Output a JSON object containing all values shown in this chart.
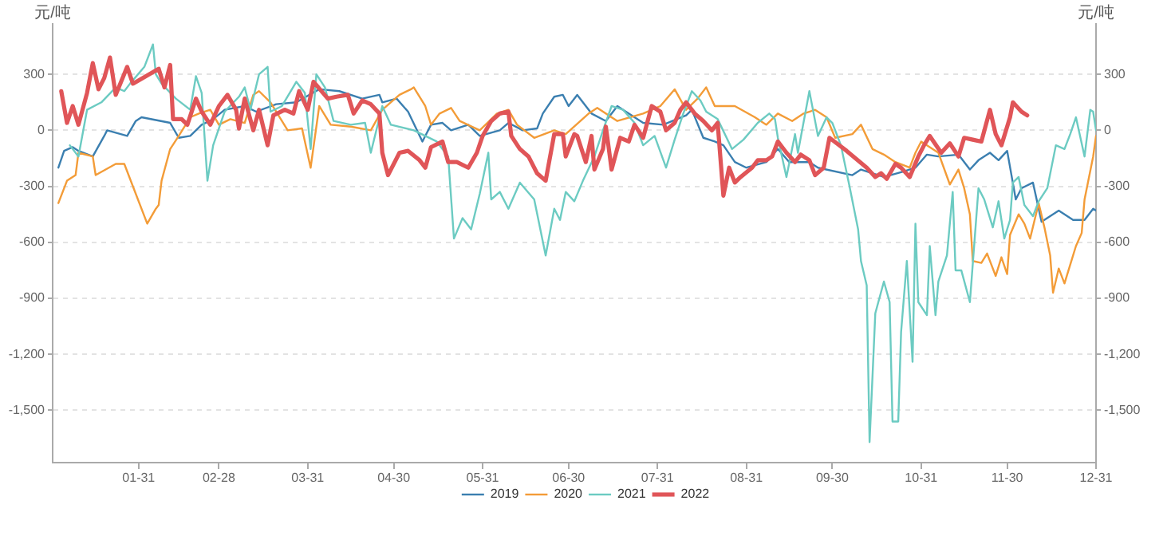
{
  "chart_data": {
    "type": "line",
    "ylabel": "元/吨",
    "y2label": "元/吨",
    "xlim": [
      "--01-01",
      "--12-31"
    ],
    "xticks": [
      {
        "value": "--01-31",
        "label": "01-31"
      },
      {
        "value": "--02-28",
        "label": "02-28"
      },
      {
        "value": "--03-31",
        "label": "03-31"
      },
      {
        "value": "--04-30",
        "label": "04-30"
      },
      {
        "value": "--05-31",
        "label": "05-31"
      },
      {
        "value": "--06-30",
        "label": "06-30"
      },
      {
        "value": "--07-31",
        "label": "07-31"
      },
      {
        "value": "--08-31",
        "label": "08-31"
      },
      {
        "value": "--09-30",
        "label": "09-30"
      },
      {
        "value": "--10-31",
        "label": "10-31"
      },
      {
        "value": "--11-30",
        "label": "11-30"
      },
      {
        "value": "--12-31",
        "label": "12-31"
      }
    ],
    "ylim": [
      -1780,
      570
    ],
    "yticks": [
      300,
      0,
      -300,
      -600,
      -900,
      {
        "value": -1200,
        "label": "-1,200"
      },
      {
        "value": -1500,
        "label": "-1,500"
      }
    ],
    "y2lim": [
      -1780,
      570
    ],
    "y2ticks": [
      300,
      0,
      -300,
      -600,
      -900,
      {
        "value": -1200,
        "label": "-1,200"
      },
      {
        "value": -1500,
        "label": "-1,500"
      }
    ],
    "grid": "y",
    "legend": "bottom",
    "series": [
      {
        "name": "2019",
        "color": "#3b7fb0",
        "x": [
          "--01-03",
          "--01-05",
          "--01-08",
          "--01-10",
          "--01-15",
          "--01-19",
          "--01-20",
          "--01-27",
          "--01-30",
          "--02-01",
          "--02-11",
          "--02-14",
          "--02-18",
          "--02-22",
          "--02-26",
          "--03-02",
          "--03-09",
          "--03-13",
          "--03-20",
          "--03-27",
          "--04-04",
          "--04-11",
          "--04-19",
          "--04-25",
          "--04-26",
          "--05-01",
          "--05-05",
          "--05-10",
          "--05-13",
          "--05-17",
          "--05-20",
          "--05-26",
          "--05-30",
          "--06-06",
          "--06-09",
          "--06-14",
          "--06-19",
          "--06-21",
          "--06-25",
          "--06-28",
          "--06-30",
          "--07-03",
          "--07-08",
          "--07-13",
          "--07-17",
          "--07-23",
          "--07-26",
          "--08-02",
          "--08-10",
          "--08-12",
          "--08-16",
          "--08-20",
          "--08-23",
          "--08-27",
          "--08-31",
          "--09-07",
          "--09-11",
          "--09-15",
          "--09-22",
          "--09-25",
          "--10-07",
          "--10-10",
          "--10-18",
          "--10-25",
          "--10-29",
          "--11-02",
          "--11-06",
          "--11-13",
          "--11-17",
          "--11-20",
          "--11-24",
          "--11-27",
          "--11-30",
          "--12-03",
          "--12-05",
          "--12-09",
          "--12-11",
          "--12-12",
          "--12-18",
          "--12-23",
          "--12-27",
          "--12-30",
          "--12-31"
        ],
        "values": [
          -200,
          -110,
          -90,
          -110,
          -140,
          -30,
          0,
          -30,
          50,
          70,
          40,
          -40,
          -30,
          30,
          60,
          110,
          130,
          100,
          140,
          150,
          220,
          210,
          170,
          190,
          150,
          170,
          100,
          -60,
          30,
          40,
          0,
          30,
          -30,
          0,
          40,
          0,
          10,
          90,
          180,
          190,
          130,
          190,
          90,
          50,
          130,
          70,
          40,
          30,
          80,
          110,
          -40,
          -60,
          -80,
          -170,
          -200,
          -170,
          -100,
          -170,
          -170,
          -200,
          -240,
          -210,
          -250,
          -220,
          -200,
          -130,
          -140,
          -130,
          -210,
          -160,
          -120,
          -160,
          -110,
          -370,
          -310,
          -280,
          -420,
          -490,
          -430,
          -480,
          -480,
          -420,
          -430
        ]
      },
      {
        "name": "2020",
        "color": "#f39c38",
        "x": [
          "--01-03",
          "--01-06",
          "--01-09",
          "--01-10",
          "--01-15",
          "--01-16",
          "--01-23",
          "--01-26",
          "--02-03",
          "--02-06",
          "--02-07",
          "--02-08",
          "--02-11",
          "--02-14",
          "--02-18",
          "--02-21",
          "--02-25",
          "--02-28",
          "--03-04",
          "--03-09",
          "--03-12",
          "--03-14",
          "--03-18",
          "--03-24",
          "--03-29",
          "--04-01",
          "--04-04",
          "--04-08",
          "--04-15",
          "--04-22",
          "--04-26",
          "--05-02",
          "--05-06",
          "--05-07",
          "--05-11",
          "--05-13",
          "--05-16",
          "--05-20",
          "--05-23",
          "--05-30",
          "--06-05",
          "--06-09",
          "--06-12",
          "--06-18",
          "--06-25",
          "--06-29",
          "--07-07",
          "--07-10",
          "--07-17",
          "--07-26",
          "--08-01",
          "--08-06",
          "--08-10",
          "--08-14",
          "--08-17",
          "--08-20",
          "--08-27",
          "--09-03",
          "--09-07",
          "--09-11",
          "--09-16",
          "--09-20",
          "--09-24",
          "--09-28",
          "--10-01",
          "--10-07",
          "--10-10",
          "--10-14",
          "--10-18",
          "--10-22",
          "--10-27",
          "--10-29",
          "--10-31",
          "--11-06",
          "--11-10",
          "--11-13",
          "--11-15",
          "--11-17",
          "--11-18",
          "--11-21",
          "--11-23",
          "--11-26",
          "--11-28",
          "--11-30",
          "--12-01",
          "--12-04",
          "--12-06",
          "--12-08",
          "--12-11",
          "--12-13",
          "--12-15",
          "--12-16",
          "--12-18",
          "--12-20",
          "--12-22",
          "--12-24",
          "--12-26",
          "--12-27",
          "--12-30",
          "--12-31"
        ],
        "values": [
          -390,
          -270,
          -240,
          -120,
          -140,
          -240,
          -180,
          -180,
          -500,
          -420,
          -400,
          -270,
          -100,
          -30,
          70,
          90,
          110,
          30,
          60,
          40,
          190,
          210,
          150,
          0,
          10,
          -200,
          130,
          30,
          20,
          0,
          110,
          190,
          220,
          230,
          130,
          30,
          90,
          120,
          50,
          0,
          90,
          110,
          30,
          -40,
          0,
          -20,
          90,
          120,
          50,
          90,
          130,
          220,
          110,
          170,
          230,
          130,
          130,
          70,
          30,
          90,
          50,
          90,
          110,
          70,
          -40,
          -20,
          30,
          -100,
          -130,
          -170,
          -200,
          -120,
          -60,
          -120,
          -290,
          -210,
          -310,
          -450,
          -700,
          -710,
          -660,
          -780,
          -680,
          -770,
          -560,
          -450,
          -500,
          -580,
          -390,
          -520,
          -670,
          -870,
          -740,
          -820,
          -720,
          -620,
          -550,
          -370,
          -140,
          -30
        ]
      },
      {
        "name": "2021",
        "color": "#6ccbc2",
        "x": [
          "--01-07",
          "--01-10",
          "--01-13",
          "--01-18",
          "--01-23",
          "--01-26",
          "--01-28",
          "--02-02",
          "--02-05",
          "--02-06",
          "--02-08",
          "--02-13",
          "--02-18",
          "--02-20",
          "--02-22",
          "--02-24",
          "--02-26",
          "--03-02",
          "--03-07",
          "--03-09",
          "--03-11",
          "--03-14",
          "--03-17",
          "--03-18",
          "--03-22",
          "--03-27",
          "--03-30",
          "--04-01",
          "--04-03",
          "--04-06",
          "--04-09",
          "--04-15",
          "--04-20",
          "--04-22",
          "--04-26",
          "--04-29",
          "--05-07",
          "--05-15",
          "--05-19",
          "--05-21",
          "--05-24",
          "--05-27",
          "--05-30",
          "--06-02",
          "--06-03",
          "--06-06",
          "--06-09",
          "--06-13",
          "--06-18",
          "--06-22",
          "--06-25",
          "--06-27",
          "--06-29",
          "--07-02",
          "--07-05",
          "--07-09",
          "--07-12",
          "--07-15",
          "--07-19",
          "--07-23",
          "--07-26",
          "--07-30",
          "--08-03",
          "--08-06",
          "--08-09",
          "--08-12",
          "--08-15",
          "--08-17",
          "--08-21",
          "--08-26",
          "--08-30",
          "--09-04",
          "--09-08",
          "--09-10",
          "--09-11",
          "--09-14",
          "--09-17",
          "--09-18",
          "--09-22",
          "--09-25",
          "--09-28",
          "--09-30",
          "--10-03",
          "--10-06",
          "--10-09",
          "--10-10",
          "--10-12",
          "--10-13",
          "--10-15",
          "--10-18",
          "--10-20",
          "--10-21",
          "--10-23",
          "--10-24",
          "--10-26",
          "--10-28",
          "--10-29",
          "--10-30",
          "--11-02",
          "--11-03",
          "--11-05",
          "--11-06",
          "--11-09",
          "--11-11",
          "--11-12",
          "--11-14",
          "--11-17",
          "--11-20",
          "--11-22",
          "--11-25",
          "--11-27",
          "--11-29",
          "--12-01",
          "--12-02",
          "--12-04",
          "--12-06",
          "--12-09",
          "--12-11",
          "--12-14",
          "--12-17",
          "--12-20",
          "--12-22",
          "--12-24",
          "--12-27",
          "--12-29",
          "--12-30",
          "--12-31"
        ],
        "values": [
          -80,
          -140,
          110,
          150,
          230,
          210,
          250,
          340,
          460,
          300,
          250,
          170,
          110,
          290,
          200,
          -270,
          -80,
          100,
          180,
          230,
          110,
          300,
          340,
          100,
          130,
          260,
          200,
          -100,
          300,
          230,
          50,
          30,
          40,
          -120,
          130,
          30,
          0,
          -60,
          -140,
          -580,
          -470,
          -530,
          -340,
          -120,
          -370,
          -330,
          -420,
          -280,
          -370,
          -670,
          -420,
          -480,
          -330,
          -380,
          -270,
          -140,
          0,
          130,
          110,
          40,
          -80,
          -30,
          -200,
          -50,
          90,
          210,
          160,
          100,
          60,
          -100,
          -50,
          40,
          90,
          60,
          -40,
          -250,
          -20,
          -120,
          210,
          -30,
          70,
          40,
          -80,
          -300,
          -530,
          -700,
          -830,
          -1670,
          -980,
          -810,
          -920,
          -1560,
          -1560,
          -1080,
          -700,
          -1240,
          -500,
          -920,
          -990,
          -620,
          -990,
          -810,
          -670,
          -330,
          -750,
          -750,
          -920,
          -310,
          -370,
          -520,
          -380,
          -580,
          -480,
          -280,
          -250,
          -400,
          -460,
          -380,
          -310,
          -80,
          -100,
          -20,
          70,
          -140,
          110,
          100,
          0
        ]
      },
      {
        "name": "2022",
        "color": "#e05558",
        "x": [
          "--01-04",
          "--01-06",
          "--01-08",
          "--01-10",
          "--01-13",
          "--01-15",
          "--01-17",
          "--01-19",
          "--01-21",
          "--01-23",
          "--01-27",
          "--01-29",
          "--02-07",
          "--02-09",
          "--02-11",
          "--02-12",
          "--02-15",
          "--02-17",
          "--02-20",
          "--02-22",
          "--02-25",
          "--02-28",
          "--03-03",
          "--03-06",
          "--03-07",
          "--03-09",
          "--03-12",
          "--03-14",
          "--03-17",
          "--03-19",
          "--03-23",
          "--03-26",
          "--03-28",
          "--03-31",
          "--04-02",
          "--04-07",
          "--04-10",
          "--04-14",
          "--04-16",
          "--04-19",
          "--04-22",
          "--04-25",
          "--04-26",
          "--04-28",
          "--05-02",
          "--05-05",
          "--05-09",
          "--05-11",
          "--05-13",
          "--05-17",
          "--05-19",
          "--05-22",
          "--05-26",
          "--05-29",
          "--05-31",
          "--06-03",
          "--06-06",
          "--06-09",
          "--06-10",
          "--06-13",
          "--06-16",
          "--06-19",
          "--06-22",
          "--06-25",
          "--06-28",
          "--06-29",
          "--07-02",
          "--07-03",
          "--07-06",
          "--07-08",
          "--07-09",
          "--07-12",
          "--07-13",
          "--07-15",
          "--07-18",
          "--07-21",
          "--07-23",
          "--07-26",
          "--07-29",
          "--08-01",
          "--08-03",
          "--08-06",
          "--08-08",
          "--08-10",
          "--08-13",
          "--08-16",
          "--08-19",
          "--08-21",
          "--08-23",
          "--08-25",
          "--08-27",
          "--08-29",
          "--09-02",
          "--09-04",
          "--09-07",
          "--09-09",
          "--09-11",
          "--09-14",
          "--09-17",
          "--09-19",
          "--09-22",
          "--09-24",
          "--09-27",
          "--09-29",
          "--10-05",
          "--10-12",
          "--10-15",
          "--10-17",
          "--10-19",
          "--10-22",
          "--10-24",
          "--10-27",
          "--10-30",
          "--11-01",
          "--11-03",
          "--11-07",
          "--11-10",
          "--11-13",
          "--11-15",
          "--11-18",
          "--11-21",
          "--11-24",
          "--11-26",
          "--11-28",
          "--11-30",
          "--12-01",
          "--12-02",
          "--12-05",
          "--12-07"
        ],
        "values": [
          210,
          40,
          130,
          30,
          200,
          360,
          220,
          280,
          390,
          190,
          340,
          250,
          330,
          230,
          350,
          60,
          60,
          30,
          170,
          100,
          30,
          130,
          190,
          110,
          10,
          170,
          0,
          110,
          -80,
          80,
          110,
          90,
          210,
          110,
          260,
          170,
          180,
          190,
          90,
          160,
          140,
          90,
          -120,
          -240,
          -120,
          -110,
          -160,
          -200,
          -90,
          -60,
          -170,
          -170,
          -200,
          -120,
          -30,
          50,
          90,
          100,
          -30,
          -100,
          -140,
          -230,
          -270,
          -20,
          -20,
          -140,
          -20,
          -30,
          -170,
          -30,
          -210,
          -100,
          20,
          -210,
          -40,
          -60,
          30,
          -40,
          130,
          100,
          0,
          40,
          110,
          150,
          90,
          50,
          0,
          40,
          -350,
          -200,
          -280,
          -250,
          -200,
          -160,
          -160,
          -140,
          -60,
          -120,
          -170,
          -130,
          -160,
          -240,
          -200,
          -40,
          -110,
          -200,
          -250,
          -230,
          -260,
          -180,
          -200,
          -250,
          -140,
          -80,
          -30,
          -120,
          -70,
          -140,
          -40,
          -50,
          -60,
          110,
          -20,
          -80,
          20,
          70,
          150,
          100,
          80
        ]
      }
    ]
  }
}
